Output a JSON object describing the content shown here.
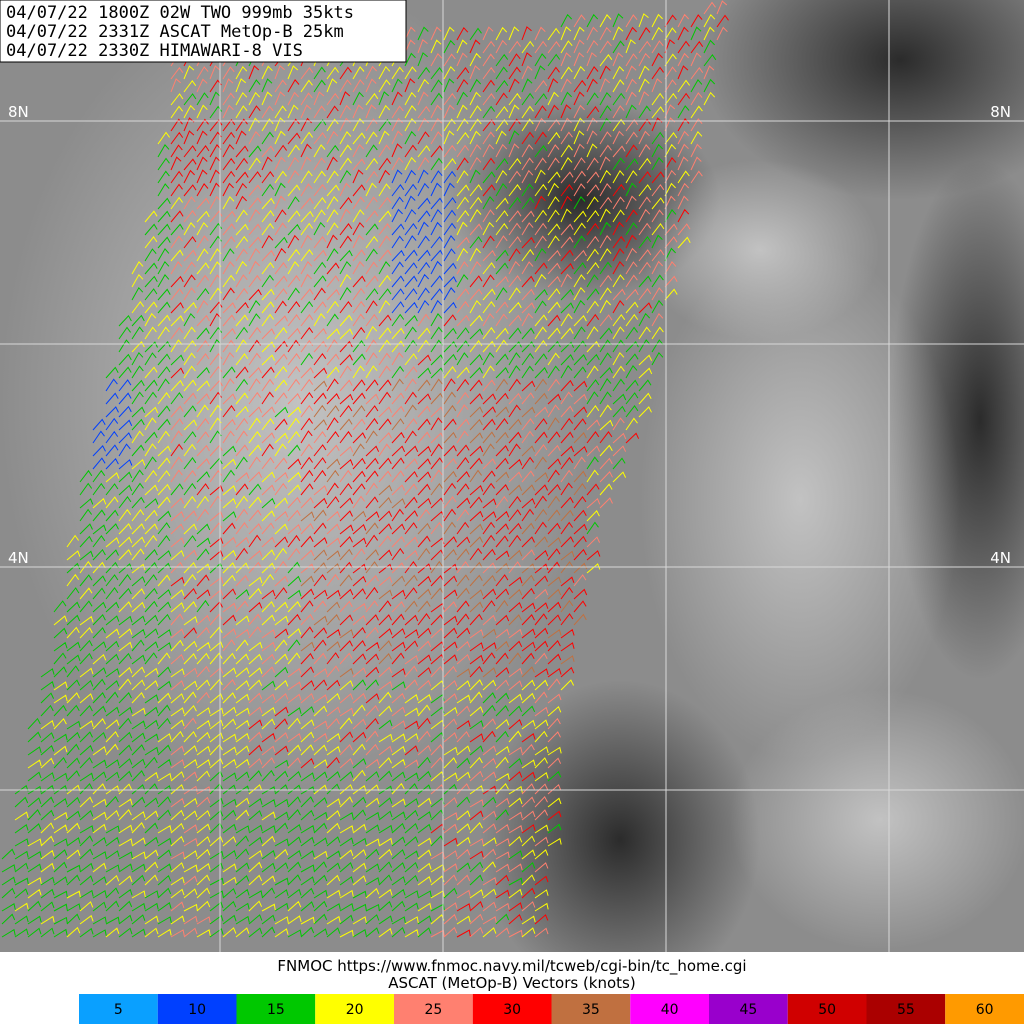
{
  "header": {
    "lines": [
      "04/07/22 1800Z  02W TWO 999mb 35kts",
      "04/07/22 2331Z  ASCAT MetOp-B 25km",
      "04/07/22 2330Z  HIMAWARI-8 VIS"
    ]
  },
  "map": {
    "lat_labels": [
      "8N",
      "4N"
    ]
  },
  "footer": {
    "source": "FNMOC https://www.fnmoc.navy.mil/tcweb/cgi-bin/tc_home.cgi",
    "caption": "ASCAT (MetOp-B) Vectors (knots)"
  },
  "legend": {
    "values": [
      5,
      10,
      15,
      20,
      25,
      30,
      35,
      40,
      45,
      50,
      55,
      60
    ],
    "colors": [
      "#0aa0ff",
      "#0040ff",
      "#00c800",
      "#ffff00",
      "#ff8070",
      "#ff0000",
      "#c07040",
      "#ff00ff",
      "#9900cc",
      "#d00000",
      "#aa0000",
      "#ff9a00"
    ]
  }
}
